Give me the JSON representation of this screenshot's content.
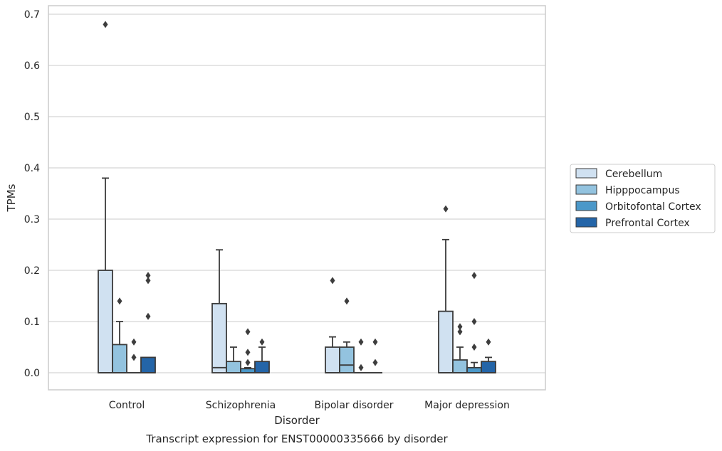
{
  "chart_data": {
    "type": "box",
    "title": "Transcript expression for ENST00000335666 by disorder",
    "xlabel": "Disorder",
    "ylabel": "TPMs",
    "ylim": [
      -0.033,
      0.715
    ],
    "yticks": [
      "0.0",
      "0.1",
      "0.2",
      "0.3",
      "0.4",
      "0.5",
      "0.6",
      "0.7"
    ],
    "grid": true,
    "legend_position": "center-right, outside plot",
    "categories": [
      "Control",
      "Schizophrenia",
      "Bipolar disorder",
      "Major depression"
    ],
    "series": [
      {
        "name": "Cerebellum",
        "color": "#d0e1f1",
        "boxes": [
          {
            "min": 0.0,
            "q1": 0.0,
            "median": 0.0,
            "q3": 0.2,
            "max": 0.38,
            "outliers": [
              0.68
            ]
          },
          {
            "min": 0.0,
            "q1": 0.0,
            "median": 0.01,
            "q3": 0.135,
            "max": 0.24,
            "outliers": []
          },
          {
            "min": 0.0,
            "q1": 0.0,
            "median": 0.0,
            "q3": 0.05,
            "max": 0.07,
            "outliers": [
              0.18
            ]
          },
          {
            "min": 0.0,
            "q1": 0.0,
            "median": 0.0,
            "q3": 0.12,
            "max": 0.26,
            "outliers": [
              0.32
            ]
          }
        ]
      },
      {
        "name": "Hipppocampus",
        "color": "#93c3df",
        "boxes": [
          {
            "min": 0.0,
            "q1": 0.0,
            "median": 0.0,
            "q3": 0.055,
            "max": 0.1,
            "outliers": [
              0.14
            ]
          },
          {
            "min": 0.0,
            "q1": 0.0,
            "median": 0.0,
            "q3": 0.022,
            "max": 0.05,
            "outliers": []
          },
          {
            "min": 0.0,
            "q1": 0.0,
            "median": 0.015,
            "q3": 0.05,
            "max": 0.06,
            "outliers": [
              0.14
            ]
          },
          {
            "min": 0.0,
            "q1": 0.0,
            "median": 0.0,
            "q3": 0.025,
            "max": 0.05,
            "outliers": [
              0.08,
              0.09
            ]
          }
        ]
      },
      {
        "name": "Orbitofontal Cortex",
        "color": "#4b98c9",
        "boxes": [
          {
            "min": 0.0,
            "q1": 0.0,
            "median": 0.0,
            "q3": 0.0,
            "max": 0.0,
            "outliers": [
              0.03,
              0.06
            ]
          },
          {
            "min": 0.0,
            "q1": 0.0,
            "median": 0.0,
            "q3": 0.008,
            "max": 0.01,
            "outliers": [
              0.02,
              0.04,
              0.08
            ]
          },
          {
            "min": 0.0,
            "q1": 0.0,
            "median": 0.0,
            "q3": 0.0,
            "max": 0.0,
            "outliers": [
              0.01,
              0.06
            ]
          },
          {
            "min": 0.0,
            "q1": 0.0,
            "median": 0.0,
            "q3": 0.01,
            "max": 0.02,
            "outliers": [
              0.05,
              0.1,
              0.19
            ]
          }
        ]
      },
      {
        "name": "Prefrontal Cortex",
        "color": "#2465a8",
        "boxes": [
          {
            "min": 0.0,
            "q1": 0.0,
            "median": 0.0,
            "q3": 0.03,
            "max": 0.03,
            "outliers": [
              0.11,
              0.18,
              0.19
            ]
          },
          {
            "min": 0.0,
            "q1": 0.0,
            "median": 0.0,
            "q3": 0.022,
            "max": 0.05,
            "outliers": [
              0.06
            ]
          },
          {
            "min": 0.0,
            "q1": 0.0,
            "median": 0.0,
            "q3": 0.0,
            "max": 0.0,
            "outliers": [
              0.02,
              0.06
            ]
          },
          {
            "min": 0.0,
            "q1": 0.0,
            "median": 0.0,
            "q3": 0.022,
            "max": 0.03,
            "outliers": [
              0.06
            ]
          }
        ]
      }
    ]
  }
}
